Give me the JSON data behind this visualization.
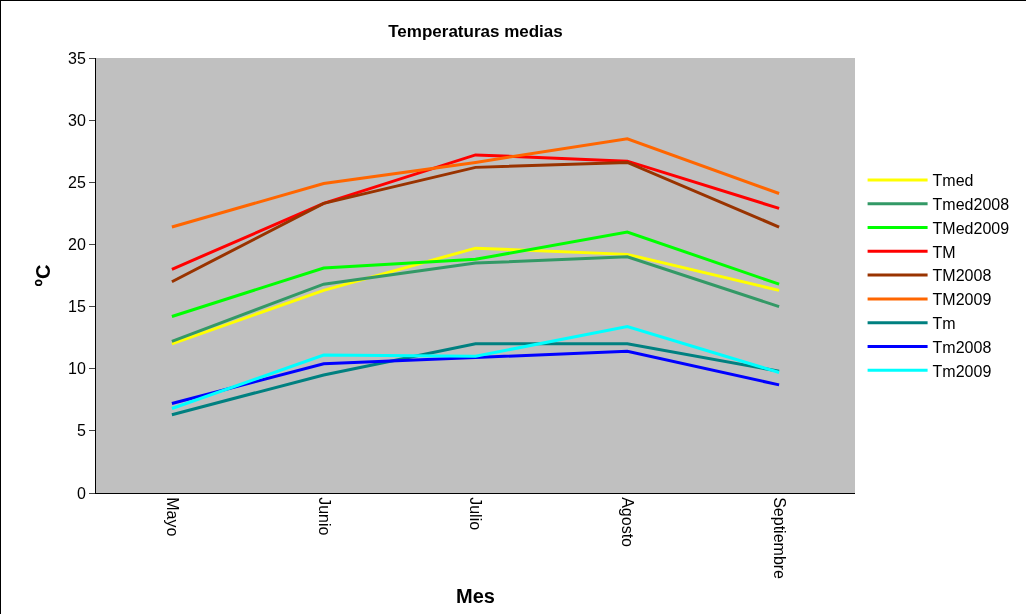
{
  "chart_data": {
    "type": "line",
    "title": "Temperaturas medias",
    "xlabel": "Mes",
    "ylabel": "ºC",
    "categories": [
      "Mayo",
      "Junio",
      "Julio",
      "Agosto",
      "Septiembre"
    ],
    "series": [
      {
        "name": "Tmed",
        "color": "#ffff00",
        "values": [
          12,
          16.3,
          19.7,
          19.2,
          16.3
        ]
      },
      {
        "name": "Tmed2008",
        "color": "#339966",
        "values": [
          12.2,
          16.8,
          18.5,
          19.0,
          15.0
        ]
      },
      {
        "name": "TMed2009",
        "color": "#00ff00",
        "values": [
          14.2,
          18.1,
          18.8,
          21.0,
          16.8
        ]
      },
      {
        "name": "TM",
        "color": "#ff0000",
        "values": [
          18,
          23.3,
          27.2,
          26.7,
          22.9
        ]
      },
      {
        "name": "TM2008",
        "color": "#993300",
        "values": [
          17,
          23.3,
          26.2,
          26.6,
          21.4
        ]
      },
      {
        "name": "TM2009",
        "color": "#ff6600",
        "values": [
          21.4,
          24.9,
          26.6,
          28.5,
          24.1
        ]
      },
      {
        "name": "Tm",
        "color": "#008080",
        "values": [
          6.3,
          9.5,
          12,
          12,
          9.8
        ]
      },
      {
        "name": "Tm2008",
        "color": "#0000ff",
        "values": [
          7.2,
          10.4,
          10.9,
          11.4,
          8.7
        ]
      },
      {
        "name": "Tm2009",
        "color": "#00ffff",
        "values": [
          6.8,
          11.1,
          11,
          13.4,
          9.7
        ]
      }
    ],
    "ylim": [
      0,
      35
    ],
    "yticks": [
      0,
      5,
      10,
      15,
      20,
      25,
      30,
      35
    ],
    "grid": false,
    "legend": "right",
    "marker": "none",
    "line_style": "solid"
  }
}
